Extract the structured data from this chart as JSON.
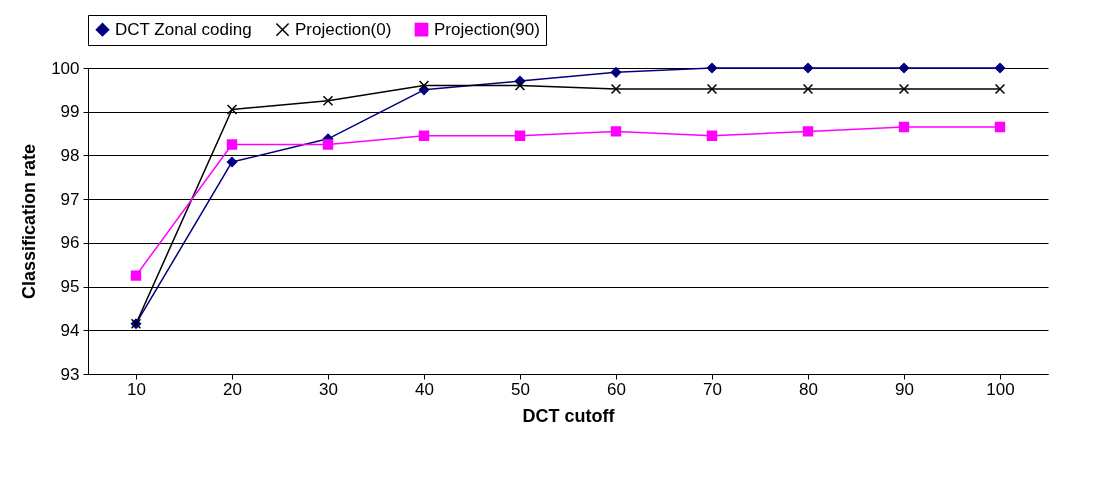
{
  "chart_data": {
    "type": "line",
    "xlabel": "DCT cutoff",
    "ylabel": "Classification rate",
    "categories": [
      "10",
      "20",
      "30",
      "40",
      "50",
      "60",
      "70",
      "80",
      "90",
      "100"
    ],
    "series": [
      {
        "name": "DCT Zonal coding",
        "color": "#000080",
        "marker": "diamond",
        "values": [
          94.15,
          97.85,
          98.38,
          99.5,
          99.7,
          99.9,
          100,
          100,
          100,
          100
        ]
      },
      {
        "name": "Projection(0)",
        "color": "#000000",
        "marker": "cross",
        "values": [
          94.15,
          99.05,
          99.25,
          99.6,
          99.6,
          99.52,
          99.52,
          99.52,
          99.52,
          99.52
        ]
      },
      {
        "name": "Projection(90)",
        "color": "#ff00ff",
        "marker": "square",
        "values": [
          95.25,
          98.25,
          98.25,
          98.45,
          98.45,
          98.55,
          98.45,
          98.55,
          98.65,
          98.65
        ]
      }
    ],
    "ylim": [
      93,
      100
    ],
    "yticks": [
      93,
      94,
      95,
      96,
      97,
      98,
      99,
      100
    ],
    "grid": "y",
    "legend": "top",
    "line_style": "solid"
  }
}
